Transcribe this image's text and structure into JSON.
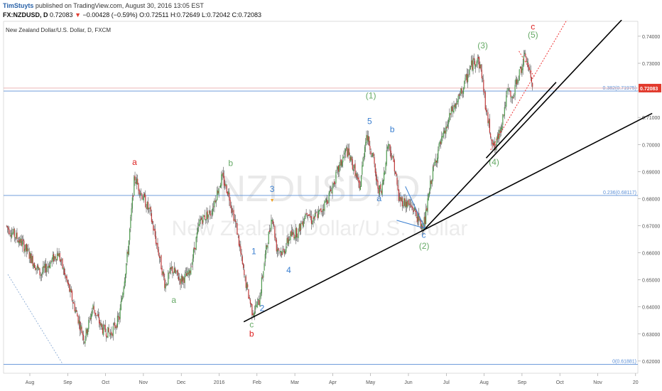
{
  "header": {
    "user": "TimStuyts",
    "published": "published on TradingView.com, August 30, 2016 13:05 EST",
    "symbol": "FX:NZDUSD, D",
    "last": "0.72083",
    "change": "−0.00428 (−0.59%)",
    "ohlc": "O:0.72511 H:0.72649 L:0.72042 C:0.72083"
  },
  "chart_data": {
    "type": "candlestick",
    "title": "New Zealand Dollar/U.S. Dollar, D, FXCM",
    "watermark_symbol": "NZDUSD, D",
    "watermark_name": "New Zealand Dollar/U.S. Dollar",
    "x_ticks": [
      "Aug",
      "Sep",
      "Oct",
      "Nov",
      "Dec",
      "2016",
      "Feb",
      "Mar",
      "Apr",
      "May",
      "Jun",
      "Jul",
      "Aug",
      "Sep",
      "Oct",
      "Nov",
      "20"
    ],
    "y_ticks": [
      "0.74000",
      "0.73000",
      "0.72000",
      "0.71000",
      "0.70000",
      "0.69000",
      "0.68000",
      "0.67000",
      "0.66000",
      "0.65000",
      "0.64000",
      "0.63000",
      "0.62000"
    ],
    "ylim": [
      0.6155,
      0.7455
    ],
    "last_price": "0.72083",
    "fib_levels": [
      {
        "label": "0.382(0.71975)",
        "price": 0.71975
      },
      {
        "label": "0.236(0.68117)",
        "price": 0.68117
      },
      {
        "label": "0(0.61881)",
        "price": 0.61881
      }
    ],
    "price_path": [
      [
        0,
        0.67
      ],
      [
        4,
        0.663
      ],
      [
        8,
        0.652
      ],
      [
        12,
        0.66
      ],
      [
        15,
        0.644
      ],
      [
        18,
        0.628
      ],
      [
        20,
        0.64
      ],
      [
        22,
        0.632
      ],
      [
        24,
        0.63
      ],
      [
        26,
        0.636
      ],
      [
        28,
        0.661
      ],
      [
        29.5,
        0.688
      ],
      [
        31,
        0.682
      ],
      [
        33,
        0.675
      ],
      [
        35,
        0.66
      ],
      [
        36.5,
        0.648
      ],
      [
        38,
        0.654
      ],
      [
        40,
        0.65
      ],
      [
        42,
        0.652
      ],
      [
        44.5,
        0.672
      ],
      [
        47,
        0.675
      ],
      [
        49.5,
        0.688
      ],
      [
        51,
        0.682
      ],
      [
        53,
        0.668
      ],
      [
        54.5,
        0.652
      ],
      [
        55.5,
        0.645
      ],
      [
        56.5,
        0.638
      ],
      [
        58,
        0.642
      ],
      [
        59.5,
        0.66
      ],
      [
        61,
        0.674
      ],
      [
        62,
        0.662
      ],
      [
        63.5,
        0.66
      ],
      [
        65,
        0.666
      ],
      [
        67,
        0.668
      ],
      [
        69,
        0.676
      ],
      [
        70,
        0.672
      ],
      [
        72,
        0.675
      ],
      [
        74,
        0.681
      ],
      [
        76,
        0.69
      ],
      [
        78,
        0.698
      ],
      [
        80,
        0.69
      ],
      [
        81,
        0.683
      ],
      [
        82.5,
        0.704
      ],
      [
        84,
        0.696
      ],
      [
        85,
        0.685
      ],
      [
        86,
        0.682
      ],
      [
        87.5,
        0.701
      ],
      [
        89,
        0.692
      ],
      [
        90,
        0.68
      ],
      [
        92,
        0.678
      ],
      [
        93.5,
        0.676
      ],
      [
        95,
        0.67
      ],
      [
        96,
        0.672
      ],
      [
        97.5,
        0.688
      ],
      [
        99,
        0.698
      ],
      [
        100.5,
        0.704
      ],
      [
        102,
        0.712
      ],
      [
        103.5,
        0.716
      ],
      [
        105,
        0.722
      ],
      [
        106.5,
        0.729
      ],
      [
        108,
        0.732
      ],
      [
        109,
        0.726
      ],
      [
        110,
        0.712
      ],
      [
        111,
        0.704
      ],
      [
        112,
        0.698
      ],
      [
        113.5,
        0.708
      ],
      [
        115,
        0.72
      ],
      [
        116,
        0.716
      ],
      [
        117,
        0.724
      ],
      [
        118,
        0.728
      ],
      [
        119,
        0.733
      ],
      [
        120,
        0.726
      ],
      [
        120.6,
        0.721
      ]
    ],
    "wave_labels": [
      {
        "text": "a",
        "color": "#d22",
        "x": 29.5,
        "y": 0.6925
      },
      {
        "text": "b",
        "color": "#d22",
        "x": 56.3,
        "y": 0.629
      },
      {
        "text": "a",
        "color": "#6a6",
        "x": 38.5,
        "y": 0.6415
      },
      {
        "text": "b",
        "color": "#6a6",
        "x": 51.5,
        "y": 0.692
      },
      {
        "text": "c",
        "color": "#6a6",
        "x": 56.3,
        "y": 0.6325
      },
      {
        "text": "1",
        "color": "#3a7fd0",
        "x": 56.8,
        "y": 0.6595
      },
      {
        "text": "2",
        "color": "#3a7fd0",
        "x": 58.7,
        "y": 0.6385
      },
      {
        "text": "3",
        "color": "#3a7fd0",
        "x": 61.0,
        "y": 0.6825
      },
      {
        "text": "4",
        "color": "#3a7fd0",
        "x": 64.8,
        "y": 0.6525
      },
      {
        "text": "5",
        "color": "#3a7fd0",
        "x": 83.3,
        "y": 0.7075
      },
      {
        "text": "b",
        "color": "#3a7fd0",
        "x": 88.5,
        "y": 0.7045
      },
      {
        "text": "a",
        "color": "#3a7fd0",
        "x": 85.5,
        "y": 0.679
      },
      {
        "text": "c",
        "color": "#3a7fd0",
        "x": 95.7,
        "y": 0.6655
      },
      {
        "text": "(1)",
        "color": "#6a6",
        "x": 83.6,
        "y": 0.717
      },
      {
        "text": "(2)",
        "color": "#6a6",
        "x": 95.8,
        "y": 0.6615
      },
      {
        "text": "(3)",
        "color": "#6a6",
        "x": 109.2,
        "y": 0.7355
      },
      {
        "text": "(4)",
        "color": "#6a6",
        "x": 111.8,
        "y": 0.6925
      },
      {
        "text": "(5)",
        "color": "#6a6",
        "x": 120.7,
        "y": 0.7395
      },
      {
        "text": "c",
        "color": "#d22",
        "x": 120.7,
        "y": 0.7425
      }
    ],
    "trendlines": [
      {
        "color": "#000",
        "width": 1.6,
        "dash": "",
        "from": [
          54.5,
          0.6345
        ],
        "to": [
          148,
          0.7115
        ]
      },
      {
        "color": "#000",
        "width": 1.6,
        "dash": "",
        "from": [
          95.5,
          0.668
        ],
        "to": [
          141,
          0.746
        ]
      },
      {
        "color": "#000",
        "width": 1.6,
        "dash": "",
        "from": [
          110,
          0.695
        ],
        "to": [
          126,
          0.723
        ]
      },
      {
        "color": "#e33",
        "width": 1,
        "dash": "2,2",
        "from": [
          111,
          0.698
        ],
        "to": [
          129,
          0.7475
        ]
      },
      {
        "color": "#e33",
        "width": 1,
        "dash": "2,2",
        "from": [
          117.5,
          0.7345
        ],
        "to": [
          121,
          0.725
        ]
      },
      {
        "color": "#3a7fd0",
        "width": 1,
        "dash": "",
        "from": [
          89.5,
          0.672
        ],
        "to": [
          96,
          0.669
        ]
      },
      {
        "color": "#3a7fd0",
        "width": 1,
        "dash": "",
        "from": [
          91.5,
          0.6845
        ],
        "to": [
          96,
          0.669
        ]
      },
      {
        "color": "#7fa3d0",
        "width": 0.8,
        "dash": "2,2",
        "from": [
          0.5,
          0.652
        ],
        "to": [
          13,
          0.619
        ]
      }
    ]
  }
}
